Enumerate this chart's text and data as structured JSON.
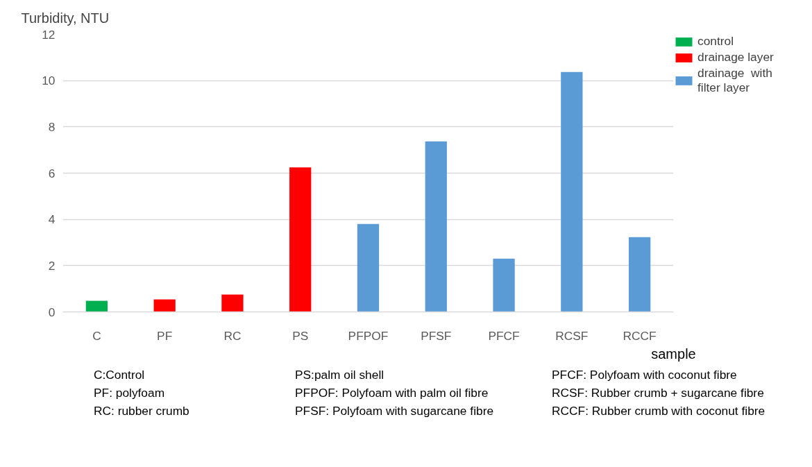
{
  "chart_data": {
    "type": "bar",
    "stacked": true,
    "ylabel": "Turbidity, NTU",
    "xlabel": "sample",
    "categories": [
      "C",
      "PF",
      "RC",
      "PS",
      "PFPOF",
      "PFSF",
      "PFCF",
      "RCSF",
      "RCCF"
    ],
    "series": [
      {
        "name": "control",
        "color": "#00b050",
        "values": [
          0.48,
          null,
          null,
          null,
          null,
          null,
          null,
          null,
          null
        ]
      },
      {
        "name": "drainage layer",
        "color": "#ff0000",
        "values": [
          null,
          0.54,
          0.75,
          6.25,
          null,
          null,
          null,
          null,
          null
        ]
      },
      {
        "name": "drainage  with filter layer",
        "color": "#5b9bd5",
        "values": [
          null,
          null,
          null,
          null,
          3.8,
          7.37,
          2.3,
          10.37,
          3.23
        ]
      }
    ],
    "ylim": [
      0,
      12
    ],
    "yticks": [
      0,
      2,
      4,
      6,
      8,
      10,
      12
    ],
    "grid": "y",
    "legend": "top right",
    "annotations": [
      "C:Control",
      "PF: polyfoam",
      "RC: rubber crumb",
      "PS:palm oil shell",
      "PFPOF: Polyfoam with palm oil fibre",
      "PFSF: Polyfoam with sugarcane fibre",
      "PFCF: Polyfoam with coconut fibre",
      "RCSF: Rubber crumb + sugarcane fibre",
      "RCCF: Rubber crumb with coconut fibre"
    ]
  }
}
